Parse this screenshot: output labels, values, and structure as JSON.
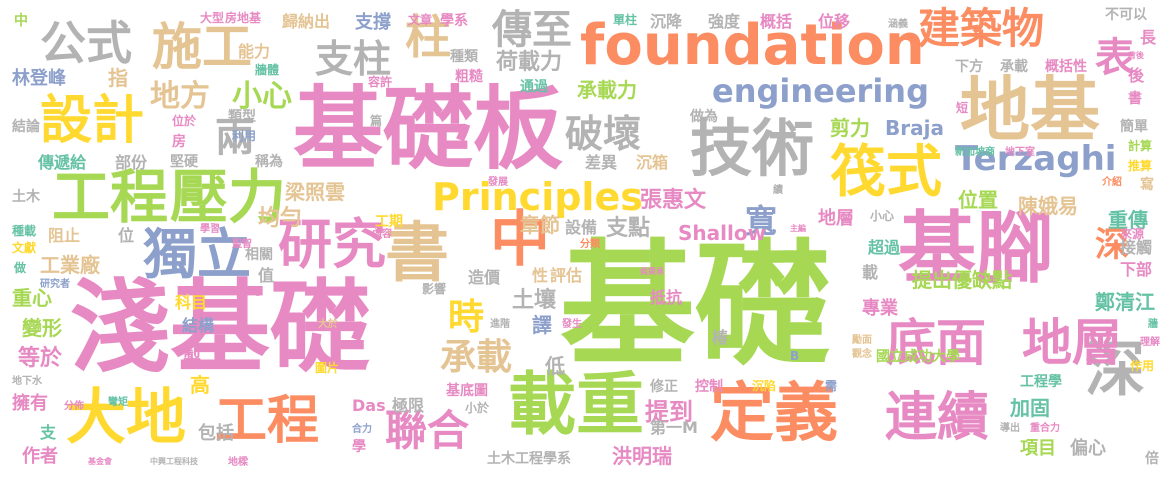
{
  "words": [
    {
      "text": "基礎",
      "color": "#a6d854"
    },
    {
      "text": "淺基礎",
      "color": "#e78ac3"
    },
    {
      "text": "基礎板",
      "color": "#e78ac3"
    },
    {
      "text": "foundation",
      "color": "#fc8d62"
    },
    {
      "text": "基腳",
      "color": "#e78ac3"
    },
    {
      "text": "地基",
      "color": "#e5c494"
    },
    {
      "text": "載重",
      "color": "#a6d854"
    },
    {
      "text": "定義",
      "color": "#fc8d62"
    },
    {
      "text": "連續",
      "color": "#e78ac3"
    },
    {
      "text": "深",
      "color": "#b3b3b3"
    },
    {
      "text": "大地",
      "color": "#ffd92f"
    },
    {
      "text": "工程",
      "color": "#fc8d62"
    },
    {
      "text": "研究",
      "color": "#e78ac3"
    },
    {
      "text": "書",
      "color": "#e5c494"
    },
    {
      "text": "中",
      "color": "#fc8d62"
    },
    {
      "text": "獨立",
      "color": "#8da0cb"
    },
    {
      "text": "工程",
      "color": "#a6d854"
    },
    {
      "text": "壓力",
      "color": "#a6d854"
    },
    {
      "text": "技術",
      "color": "#b3b3b3"
    },
    {
      "text": "筏式",
      "color": "#ffd92f"
    },
    {
      "text": "底面",
      "color": "#e78ac3"
    },
    {
      "text": "地層",
      "color": "#e78ac3"
    },
    {
      "text": "建築物",
      "color": "#fc8d62"
    },
    {
      "text": "Principles",
      "color": "#ffd92f"
    },
    {
      "text": "engineering",
      "color": "#8da0cb"
    },
    {
      "text": "設計",
      "color": "#ffd92f"
    },
    {
      "text": "施工",
      "color": "#e5c494"
    },
    {
      "text": "公式",
      "color": "#b3b3b3"
    },
    {
      "text": "柱",
      "color": "#e5c494"
    },
    {
      "text": "支柱",
      "color": "#b3b3b3"
    },
    {
      "text": "傳至",
      "color": "#b3b3b3"
    },
    {
      "text": "破壞",
      "color": "#b3b3b3"
    },
    {
      "text": "兩",
      "color": "#b3b3b3"
    },
    {
      "text": "Terzaghi",
      "color": "#8da0cb"
    },
    {
      "text": "表",
      "color": "#e78ac3"
    },
    {
      "text": "聯合",
      "color": "#e78ac3"
    },
    {
      "text": "時",
      "color": "#ffd92f"
    },
    {
      "text": "承載",
      "color": "#e5c494"
    },
    {
      "text": "寬",
      "color": "#8da0cb"
    },
    {
      "text": "深",
      "color": "#fc8d62"
    },
    {
      "text": "地方",
      "color": "#e5c494"
    },
    {
      "text": "小心",
      "color": "#a6d854"
    },
    {
      "text": "荷載力",
      "color": "#b3b3b3"
    },
    {
      "text": "承載力",
      "color": "#a6d854"
    },
    {
      "text": "梁照雲",
      "color": "#e5c494"
    },
    {
      "text": "張惠文",
      "color": "#e78ac3"
    },
    {
      "text": "均勻",
      "color": "#e5c494"
    },
    {
      "text": "章節",
      "color": "#e5c494"
    },
    {
      "text": "支點",
      "color": "#b3b3b3"
    },
    {
      "text": "Shallow",
      "color": "#e78ac3"
    },
    {
      "text": "Braja",
      "color": "#8da0cb"
    },
    {
      "text": "剪力",
      "color": "#a6d854"
    },
    {
      "text": "位置",
      "color": "#a6d854"
    },
    {
      "text": "陳娥易",
      "color": "#e5c494"
    },
    {
      "text": "重傳",
      "color": "#66c2a5"
    },
    {
      "text": "提出優缺點",
      "color": "#a6d854"
    },
    {
      "text": "鄭清江",
      "color": "#66c2a5"
    },
    {
      "text": "專業",
      "color": "#e78ac3"
    },
    {
      "text": "國立成功大學",
      "color": "#a6d854"
    },
    {
      "text": "工程學",
      "color": "#66c2a5"
    },
    {
      "text": "加固",
      "color": "#66c2a5"
    },
    {
      "text": "項目",
      "color": "#a6d854"
    },
    {
      "text": "偏心",
      "color": "#b3b3b3"
    },
    {
      "text": "土壤",
      "color": "#b3b3b3"
    },
    {
      "text": "譯",
      "color": "#8da0cb"
    },
    {
      "text": "低",
      "color": "#b3b3b3"
    },
    {
      "text": "提到",
      "color": "#e78ac3"
    },
    {
      "text": "第一M",
      "color": "#b3b3b3"
    },
    {
      "text": "洪明瑞",
      "color": "#e78ac3"
    },
    {
      "text": "土木工程學系",
      "color": "#b3b3b3"
    },
    {
      "text": "Das",
      "color": "#e78ac3"
    },
    {
      "text": "極限",
      "color": "#b3b3b3"
    },
    {
      "text": "包括",
      "color": "#b3b3b3"
    },
    {
      "text": "工業廠",
      "color": "#e5c494"
    },
    {
      "text": "重心",
      "color": "#a6d854"
    },
    {
      "text": "變形",
      "color": "#a6d854"
    },
    {
      "text": "等於",
      "color": "#e78ac3"
    },
    {
      "text": "擁有",
      "color": "#e78ac3"
    },
    {
      "text": "作者",
      "color": "#e78ac3"
    },
    {
      "text": "高",
      "color": "#ffd92f"
    },
    {
      "text": "製",
      "color": "#e78ac3"
    },
    {
      "text": "結構",
      "color": "#8da0cb"
    },
    {
      "text": "科目",
      "color": "#ffd92f"
    },
    {
      "text": "林登峰",
      "color": "#8da0cb"
    },
    {
      "text": "指",
      "color": "#e5c494"
    },
    {
      "text": "傳遞給",
      "color": "#66c2a5"
    },
    {
      "text": "部份",
      "color": "#b3b3b3"
    },
    {
      "text": "堅硬",
      "color": "#b3b3b3"
    },
    {
      "text": "稱為",
      "color": "#b3b3b3"
    },
    {
      "text": "工期",
      "color": "#ffd92f"
    },
    {
      "text": "設備",
      "color": "#b3b3b3"
    },
    {
      "text": "造價",
      "color": "#b3b3b3"
    },
    {
      "text": "性",
      "color": "#e5c494"
    },
    {
      "text": "評估",
      "color": "#e5c494"
    },
    {
      "text": "抵抗",
      "color": "#e78ac3"
    },
    {
      "text": "地層",
      "color": "#e78ac3"
    },
    {
      "text": "超過",
      "color": "#66c2a5"
    },
    {
      "text": "下部",
      "color": "#e78ac3"
    },
    {
      "text": "接觸",
      "color": "#b3b3b3"
    },
    {
      "text": "支撐",
      "color": "#8da0cb"
    },
    {
      "text": "能力",
      "color": "#e5c494"
    },
    {
      "text": "歸納出",
      "color": "#e5c494"
    },
    {
      "text": "強度",
      "color": "#b3b3b3"
    },
    {
      "text": "概括",
      "color": "#e78ac3"
    },
    {
      "text": "位移",
      "color": "#e78ac3"
    },
    {
      "text": "承載",
      "color": "#b3b3b3"
    },
    {
      "text": "概括性",
      "color": "#e78ac3"
    },
    {
      "text": "長",
      "color": "#e78ac3"
    },
    {
      "text": "後",
      "color": "#e78ac3"
    },
    {
      "text": "書",
      "color": "#e78ac3"
    },
    {
      "text": "簡單",
      "color": "#b3b3b3"
    },
    {
      "text": "推算",
      "color": "#ffd92f"
    },
    {
      "text": "寫",
      "color": "#e5c494"
    },
    {
      "text": "沉降",
      "color": "#b3b3b3"
    },
    {
      "text": "差異",
      "color": "#b3b3b3"
    },
    {
      "text": "沉箱",
      "color": "#e5c494"
    },
    {
      "text": "椿",
      "color": "#b3b3b3"
    },
    {
      "text": "載",
      "color": "#b3b3b3"
    },
    {
      "text": "值",
      "color": "#b3b3b3"
    },
    {
      "text": "相關",
      "color": "#b3b3b3"
    },
    {
      "text": "類型",
      "color": "#b3b3b3"
    },
    {
      "text": "阻止",
      "color": "#e5c494"
    },
    {
      "text": "位",
      "color": "#b3b3b3"
    },
    {
      "text": "種類",
      "color": "#b3b3b3"
    },
    {
      "text": "粗糙",
      "color": "#e78ac3"
    },
    {
      "text": "通過",
      "color": "#66c2a5"
    },
    {
      "text": "做為",
      "color": "#b3b3b3"
    },
    {
      "text": "不可以",
      "color": "#b3b3b3"
    },
    {
      "text": "下方",
      "color": "#b3b3b3"
    },
    {
      "text": "支",
      "color": "#66c2a5"
    },
    {
      "text": "倍",
      "color": "#b3b3b3"
    },
    {
      "text": "圖片",
      "color": "#ffd92f"
    },
    {
      "text": "基底圖",
      "color": "#e78ac3"
    },
    {
      "text": "控制",
      "color": "#e78ac3"
    },
    {
      "text": "修正",
      "color": "#b3b3b3"
    },
    {
      "text": "沉陷",
      "color": "#ffd92f"
    },
    {
      "text": "作用",
      "color": "#ffd92f"
    },
    {
      "text": "中",
      "color": "#a6d854"
    },
    {
      "text": "大型",
      "color": "#e78ac3"
    },
    {
      "text": "房地基",
      "color": "#e78ac3"
    },
    {
      "text": "文章",
      "color": "#e78ac3"
    },
    {
      "text": "學系",
      "color": "#e78ac3"
    },
    {
      "text": "單柱",
      "color": "#66c2a5"
    },
    {
      "text": "涵義",
      "color": "#b3b3b3"
    },
    {
      "text": "牆體",
      "color": "#66c2a5"
    },
    {
      "text": "容許",
      "color": "#e78ac3"
    },
    {
      "text": "結論",
      "color": "#b3b3b3"
    },
    {
      "text": "位於",
      "color": "#e78ac3"
    },
    {
      "text": "房",
      "color": "#e78ac3"
    },
    {
      "text": "利用",
      "color": "#8da0cb"
    },
    {
      "text": "篇",
      "color": "#b3b3b3"
    },
    {
      "text": "短",
      "color": "#e78ac3"
    },
    {
      "text": "新加坡商",
      "color": "#66c2a5"
    },
    {
      "text": "地下室",
      "color": "#e78ac3"
    },
    {
      "text": "計算",
      "color": "#a6d854"
    },
    {
      "text": "介紹",
      "color": "#fc8d62"
    },
    {
      "text": "土木",
      "color": "#b3b3b3"
    },
    {
      "text": "發展",
      "color": "#e78ac3"
    },
    {
      "text": "續",
      "color": "#b3b3b3"
    },
    {
      "text": "小心",
      "color": "#b3b3b3"
    },
    {
      "text": "種載",
      "color": "#66c2a5"
    },
    {
      "text": "文獻",
      "color": "#ffd92f"
    },
    {
      "text": "學習",
      "color": "#e78ac3"
    },
    {
      "text": "聖智",
      "color": "#e78ac3"
    },
    {
      "text": "內容",
      "color": "#e78ac3"
    },
    {
      "text": "分類",
      "color": "#fc8d62"
    },
    {
      "text": "主編",
      "color": "#e78ac3"
    },
    {
      "text": "來源",
      "color": "#e78ac3"
    },
    {
      "text": "做",
      "color": "#66c2a5"
    },
    {
      "text": "研究者",
      "color": "#8da0cb"
    },
    {
      "text": "參考",
      "color": "#e78ac3"
    },
    {
      "text": "影響",
      "color": "#b3b3b3"
    },
    {
      "text": "進階",
      "color": "#b3b3b3"
    },
    {
      "text": "發生",
      "color": "#e78ac3"
    },
    {
      "text": "侯秉承",
      "color": "#e78ac3"
    },
    {
      "text": "大於",
      "color": "#e5c494"
    },
    {
      "text": "勵面",
      "color": "#e5c494"
    },
    {
      "text": "觀念",
      "color": "#e5c494"
    },
    {
      "text": "牆",
      "color": "#66c2a5"
    },
    {
      "text": "理解",
      "color": "#e78ac3"
    },
    {
      "text": "地下水",
      "color": "#b3b3b3"
    },
    {
      "text": "分佈",
      "color": "#e78ac3"
    },
    {
      "text": "彎矩",
      "color": "#66c2a5"
    },
    {
      "text": "小於",
      "color": "#b3b3b3"
    },
    {
      "text": "合力",
      "color": "#8da0cb"
    },
    {
      "text": "學",
      "color": "#e78ac3"
    },
    {
      "text": "B",
      "color": "#8da0cb"
    },
    {
      "text": "需",
      "color": "#8da0cb"
    },
    {
      "text": "導出",
      "color": "#b3b3b3"
    },
    {
      "text": "重合力",
      "color": "#e78ac3"
    },
    {
      "text": "基金會",
      "color": "#e78ac3"
    },
    {
      "text": "中興工程科技",
      "color": "#b3b3b3"
    },
    {
      "text": "地樑",
      "color": "#e78ac3"
    },
    {
      "text": "背後",
      "color": "#e78ac3"
    }
  ]
}
